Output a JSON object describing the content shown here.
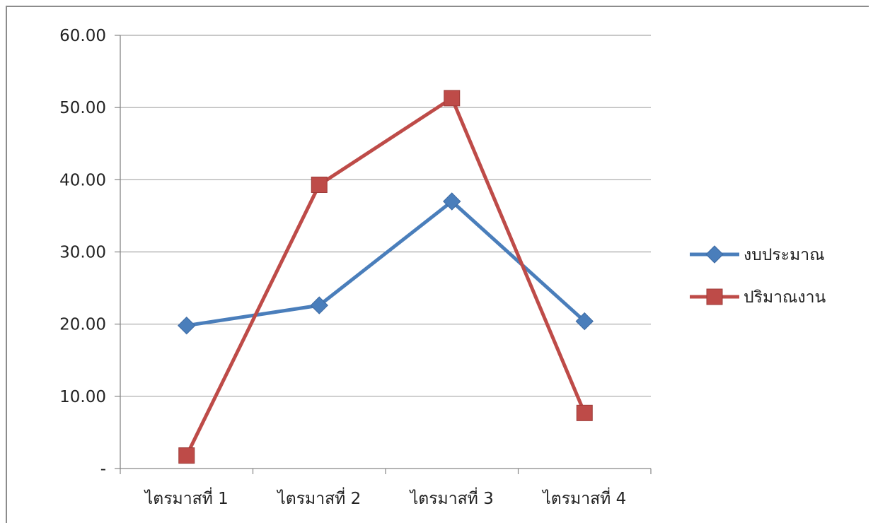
{
  "chart_data": {
    "type": "line",
    "categories": [
      "ไตรมาสที่ 1",
      "ไตรมาสที่ 2",
      "ไตรมาสที่ 3",
      "ไตรมาสที่ 4"
    ],
    "series": [
      {
        "name": "งบประมาณ",
        "values": [
          19.8,
          22.6,
          37.0,
          20.4
        ],
        "color": "#4a7ebb",
        "marker": "diamond"
      },
      {
        "name": "ปริมาณงาน",
        "values": [
          1.8,
          39.3,
          51.3,
          7.7
        ],
        "color": "#be4b48",
        "marker": "square"
      }
    ],
    "yticks": [
      "-",
      "10.00",
      "20.00",
      "30.00",
      "40.00",
      "50.00",
      "60.00"
    ],
    "ylim": [
      0,
      60
    ],
    "grid": true,
    "legend_position": "right",
    "gridline_color": "#a6a6a6",
    "axis_color": "#868686"
  }
}
